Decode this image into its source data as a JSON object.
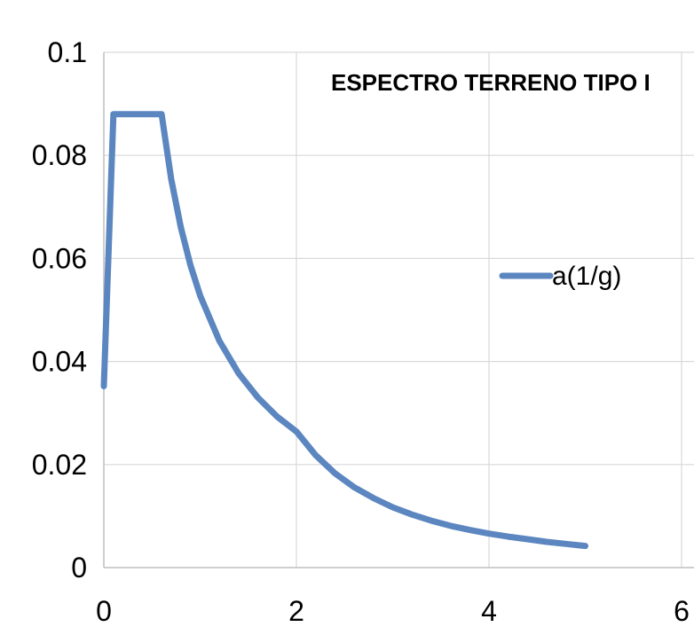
{
  "chart_data": {
    "type": "line",
    "title": "ESPECTRO TERRENO TIPO I",
    "xlim": [
      0,
      6
    ],
    "ylim": [
      0,
      0.1
    ],
    "x_ticks": [
      "0",
      "2",
      "4",
      "6"
    ],
    "y_ticks": [
      "0",
      "0.02",
      "0.04",
      "0.06",
      "0.08",
      "0.1"
    ],
    "grid": true,
    "legend_position": "right",
    "series": [
      {
        "name": "a(1/g)",
        "color": "#5B86C0",
        "x": [
          0,
          0.1,
          0.2,
          0.4,
          0.6,
          0.7,
          0.8,
          0.9,
          1.0,
          1.2,
          1.4,
          1.6,
          1.8,
          2.0,
          2.2,
          2.4,
          2.6,
          2.8,
          3.0,
          3.2,
          3.4,
          3.6,
          3.8,
          4.0,
          4.2,
          4.4,
          4.6,
          4.8,
          5.0
        ],
        "y": [
          0.0352,
          0.088,
          0.088,
          0.088,
          0.088,
          0.0754,
          0.066,
          0.0587,
          0.0528,
          0.044,
          0.0377,
          0.033,
          0.0293,
          0.0264,
          0.0218,
          0.0183,
          0.0156,
          0.0135,
          0.0117,
          0.0103,
          0.0091,
          0.0081,
          0.0073,
          0.0066,
          0.006,
          0.0055,
          0.005,
          0.0046,
          0.0042
        ]
      }
    ]
  }
}
